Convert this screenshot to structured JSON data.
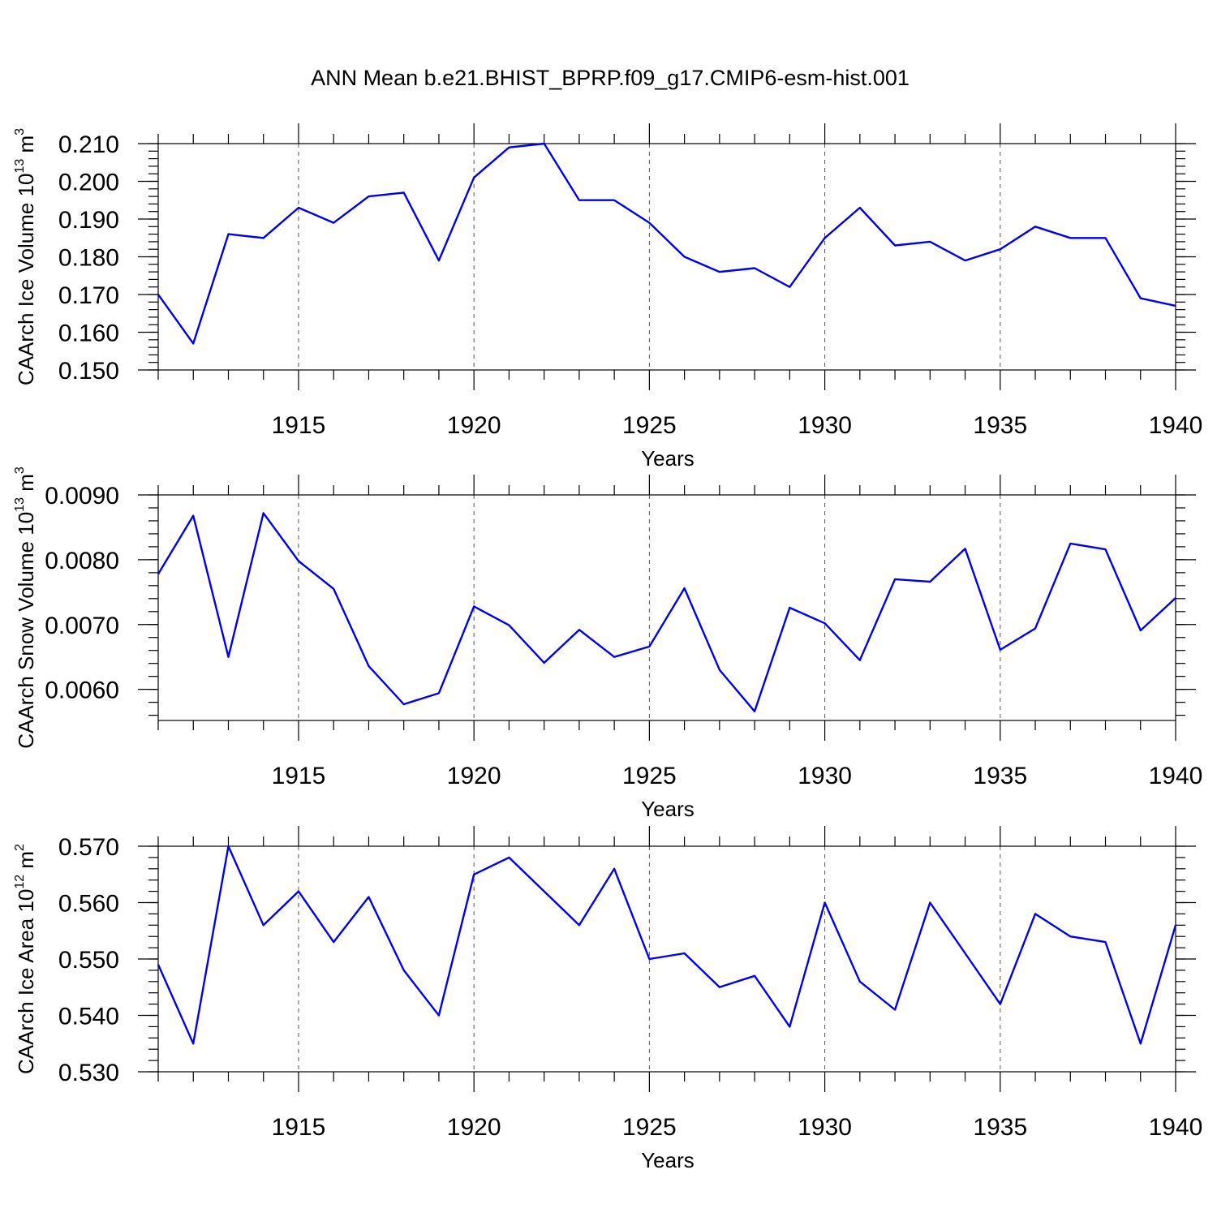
{
  "title": "ANN Mean b.e21.BHIST_BPRP.f09_g17.CMIP6-esm-hist.001",
  "line_color": "#0000ee",
  "chart_data": [
    {
      "type": "line",
      "ylabel": "CAArch Ice Volume 10",
      "ylabel_exp": "13",
      "ylabel_unit": " m",
      "ylabel_unit_exp": "3",
      "xlabel": "Years",
      "xlim": [
        1911,
        1940
      ],
      "ylim": [
        0.15,
        0.21
      ],
      "yticks": [
        0.15,
        0.16,
        0.17,
        0.18,
        0.19,
        0.2,
        0.21
      ],
      "ytick_labels": [
        "0.150",
        "0.160",
        "0.170",
        "0.180",
        "0.190",
        "0.200",
        "0.210"
      ],
      "yminor_step": 0.002,
      "xticks": [
        1915,
        1920,
        1925,
        1930,
        1935,
        1940
      ],
      "xtick_labels": [
        "1915",
        "1920",
        "1925",
        "1930",
        "1935",
        "1940"
      ],
      "x": [
        1911,
        1912,
        1913,
        1914,
        1915,
        1916,
        1917,
        1918,
        1919,
        1920,
        1921,
        1922,
        1923,
        1924,
        1925,
        1926,
        1927,
        1928,
        1929,
        1930,
        1931,
        1932,
        1933,
        1934,
        1935,
        1936,
        1937,
        1938,
        1939,
        1940
      ],
      "values": [
        0.17,
        0.157,
        0.186,
        0.185,
        0.193,
        0.189,
        0.196,
        0.197,
        0.179,
        0.201,
        0.209,
        0.21,
        0.195,
        0.195,
        0.189,
        0.18,
        0.176,
        0.177,
        0.172,
        0.185,
        0.193,
        0.183,
        0.184,
        0.179,
        0.182,
        0.188,
        0.185,
        0.185,
        0.169,
        0.167
      ]
    },
    {
      "type": "line",
      "ylabel": "CAArch Snow Volume 10",
      "ylabel_exp": "13",
      "ylabel_unit": " m",
      "ylabel_unit_exp": "3",
      "xlabel": "Years",
      "xlim": [
        1911,
        1940
      ],
      "ylim": [
        0.00552,
        0.009
      ],
      "yticks": [
        0.006,
        0.007,
        0.008,
        0.009
      ],
      "ytick_labels": [
        "0.0060",
        "0.0070",
        "0.0080",
        "0.0090"
      ],
      "yminor_step": 0.0002,
      "xticks": [
        1915,
        1920,
        1925,
        1930,
        1935,
        1940
      ],
      "xtick_labels": [
        "1915",
        "1920",
        "1925",
        "1930",
        "1935",
        "1940"
      ],
      "x": [
        1911,
        1912,
        1913,
        1914,
        1915,
        1916,
        1917,
        1918,
        1919,
        1920,
        1921,
        1922,
        1923,
        1924,
        1925,
        1926,
        1927,
        1928,
        1929,
        1930,
        1931,
        1932,
        1933,
        1934,
        1935,
        1936,
        1937,
        1938,
        1939,
        1940
      ],
      "values": [
        0.00778,
        0.00868,
        0.0065,
        0.00872,
        0.00798,
        0.00755,
        0.00636,
        0.00577,
        0.00594,
        0.00728,
        0.00699,
        0.00641,
        0.00692,
        0.0065,
        0.00666,
        0.00756,
        0.0063,
        0.00566,
        0.00726,
        0.00702,
        0.00645,
        0.0077,
        0.00766,
        0.00817,
        0.00661,
        0.00694,
        0.00825,
        0.00816,
        0.00691,
        0.00741
      ]
    },
    {
      "type": "line",
      "ylabel": "CAArch Ice Area 10",
      "ylabel_exp": "12",
      "ylabel_unit": " m",
      "ylabel_unit_exp": "2",
      "xlabel": "Years",
      "xlim": [
        1911,
        1940
      ],
      "ylim": [
        0.53,
        0.57
      ],
      "yticks": [
        0.53,
        0.54,
        0.55,
        0.56,
        0.57
      ],
      "ytick_labels": [
        "0.530",
        "0.540",
        "0.550",
        "0.560",
        "0.570"
      ],
      "yminor_step": 0.002,
      "xticks": [
        1915,
        1920,
        1925,
        1930,
        1935,
        1940
      ],
      "xtick_labels": [
        "1915",
        "1920",
        "1925",
        "1930",
        "1935",
        "1940"
      ],
      "x": [
        1911,
        1912,
        1913,
        1914,
        1915,
        1916,
        1917,
        1918,
        1919,
        1920,
        1921,
        1922,
        1923,
        1924,
        1925,
        1926,
        1927,
        1928,
        1929,
        1930,
        1931,
        1932,
        1933,
        1934,
        1935,
        1936,
        1937,
        1938,
        1939,
        1940
      ],
      "values": [
        0.549,
        0.535,
        0.57,
        0.556,
        0.562,
        0.553,
        0.561,
        0.548,
        0.54,
        0.565,
        0.568,
        0.562,
        0.556,
        0.566,
        0.55,
        0.551,
        0.545,
        0.547,
        0.538,
        0.56,
        0.546,
        0.541,
        0.56,
        0.551,
        0.542,
        0.558,
        0.554,
        0.553,
        0.535,
        0.556
      ]
    }
  ]
}
